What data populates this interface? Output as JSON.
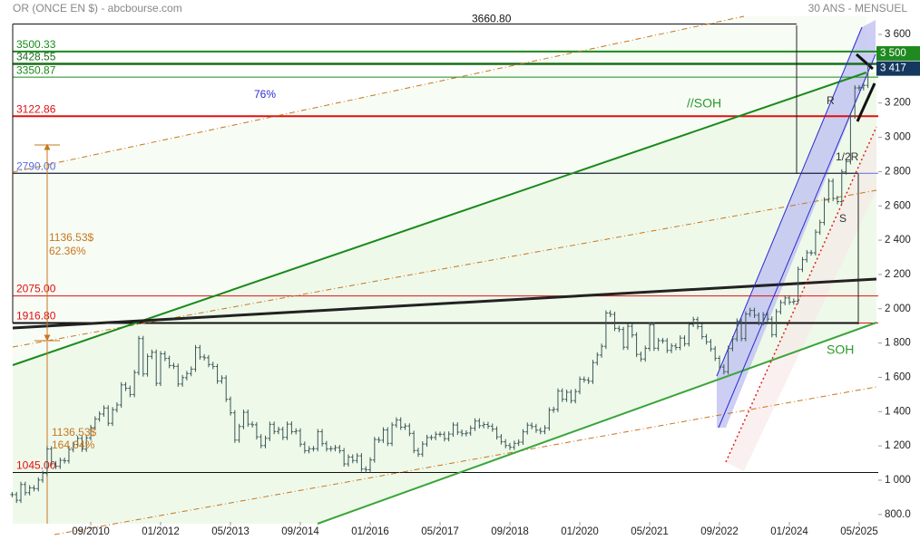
{
  "chart_data": {
    "type": "ohlc",
    "title": "OR (ONCE EN $) - abcbourse.com",
    "subtitle": "30 ANS - MENSUEL",
    "x": [
      "03/2009",
      "04/2009",
      "05/2009",
      "06/2009",
      "07/2009",
      "08/2009",
      "09/2009",
      "10/2009",
      "11/2009",
      "12/2009",
      "01/2010",
      "02/2010",
      "03/2010",
      "04/2010",
      "05/2010",
      "06/2010",
      "07/2010",
      "08/2010",
      "09/2010",
      "10/2010",
      "11/2010",
      "12/2010",
      "01/2011",
      "02/2011",
      "03/2011",
      "04/2011",
      "05/2011",
      "06/2011",
      "07/2011",
      "08/2011",
      "09/2011",
      "10/2011",
      "11/2011",
      "12/2011",
      "01/2012",
      "02/2012",
      "03/2012",
      "04/2012",
      "05/2012",
      "06/2012",
      "07/2012",
      "08/2012",
      "09/2012",
      "10/2012",
      "11/2012",
      "12/2012",
      "01/2013",
      "02/2013",
      "03/2013",
      "04/2013",
      "05/2013",
      "06/2013",
      "07/2013",
      "08/2013",
      "09/2013",
      "10/2013",
      "11/2013",
      "12/2013",
      "01/2014",
      "02/2014",
      "03/2014",
      "04/2014",
      "05/2014",
      "06/2014",
      "07/2014",
      "08/2014",
      "09/2014",
      "10/2014",
      "11/2014",
      "12/2014",
      "01/2015",
      "02/2015",
      "03/2015",
      "04/2015",
      "05/2015",
      "06/2015",
      "07/2015",
      "08/2015",
      "09/2015",
      "10/2015",
      "11/2015",
      "12/2015",
      "01/2016",
      "02/2016",
      "03/2016",
      "04/2016",
      "05/2016",
      "06/2016",
      "07/2016",
      "08/2016",
      "09/2016",
      "10/2016",
      "11/2016",
      "12/2016",
      "01/2017",
      "02/2017",
      "03/2017",
      "04/2017",
      "05/2017",
      "06/2017",
      "07/2017",
      "08/2017",
      "09/2017",
      "10/2017",
      "11/2017",
      "12/2017",
      "01/2018",
      "02/2018",
      "03/2018",
      "04/2018",
      "05/2018",
      "06/2018",
      "07/2018",
      "08/2018",
      "09/2018",
      "10/2018",
      "11/2018",
      "12/2018",
      "01/2019",
      "02/2019",
      "03/2019",
      "04/2019",
      "05/2019",
      "06/2019",
      "07/2019",
      "08/2019",
      "09/2019",
      "10/2019",
      "11/2019",
      "12/2019",
      "01/2020",
      "02/2020",
      "03/2020",
      "04/2020",
      "05/2020",
      "06/2020",
      "07/2020",
      "08/2020",
      "09/2020",
      "10/2020",
      "11/2020",
      "12/2020",
      "01/2021",
      "02/2021",
      "03/2021",
      "04/2021",
      "05/2021",
      "06/2021",
      "07/2021",
      "08/2021",
      "09/2021",
      "10/2021",
      "11/2021",
      "12/2021",
      "01/2022",
      "02/2022",
      "03/2022",
      "04/2022",
      "05/2022",
      "06/2022",
      "07/2022",
      "08/2022",
      "09/2022",
      "10/2022",
      "11/2022",
      "12/2022",
      "01/2023",
      "02/2023",
      "03/2023",
      "04/2023",
      "05/2023",
      "06/2023",
      "07/2023",
      "08/2023",
      "09/2023",
      "10/2023",
      "11/2023",
      "12/2023",
      "01/2024",
      "02/2024",
      "03/2024",
      "04/2024",
      "05/2024",
      "06/2024",
      "07/2024",
      "08/2024",
      "09/2024",
      "10/2024",
      "11/2024",
      "12/2024",
      "01/2025",
      "02/2025",
      "03/2025",
      "04/2025",
      "05/2025",
      "06/2025",
      "07/2025"
    ],
    "values": [
      916,
      883,
      975,
      927,
      955,
      951,
      1001,
      1040,
      1182,
      1096,
      1081,
      1116,
      1113,
      1179,
      1208,
      1244,
      1181,
      1247,
      1307,
      1357,
      1386,
      1421,
      1332,
      1411,
      1439,
      1556,
      1536,
      1500,
      1628,
      1826,
      1620,
      1722,
      1746,
      1565,
      1737,
      1710,
      1669,
      1664,
      1561,
      1598,
      1622,
      1648,
      1773,
      1719,
      1714,
      1675,
      1663,
      1578,
      1596,
      1472,
      1393,
      1234,
      1313,
      1396,
      1327,
      1323,
      1253,
      1202,
      1244,
      1326,
      1284,
      1296,
      1250,
      1327,
      1283,
      1287,
      1210,
      1172,
      1183,
      1184,
      1283,
      1213,
      1183,
      1184,
      1190,
      1172,
      1095,
      1135,
      1115,
      1142,
      1065,
      1061,
      1118,
      1237,
      1233,
      1293,
      1215,
      1322,
      1351,
      1309,
      1316,
      1273,
      1173,
      1152,
      1211,
      1249,
      1249,
      1268,
      1268,
      1242,
      1269,
      1322,
      1280,
      1271,
      1275,
      1303,
      1345,
      1318,
      1325,
      1315,
      1298,
      1253,
      1224,
      1202,
      1192,
      1215,
      1222,
      1282,
      1321,
      1313,
      1292,
      1284,
      1305,
      1409,
      1413,
      1520,
      1472,
      1513,
      1464,
      1517,
      1589,
      1585,
      1577,
      1686,
      1730,
      1781,
      1975,
      1967,
      1886,
      1879,
      1776,
      1898,
      1847,
      1734,
      1707,
      1769,
      1906,
      1770,
      1814,
      1813,
      1757,
      1783,
      1774,
      1829,
      1796,
      1909,
      1937,
      1896,
      1837,
      1807,
      1766,
      1711,
      1660,
      1633,
      1768,
      1824,
      1928,
      1826,
      1969,
      1990,
      1962,
      1919,
      1965,
      1940,
      1849,
      1983,
      2036,
      2063,
      2039,
      2044,
      2230,
      2286,
      2327,
      2326,
      2447,
      2503,
      2634,
      2744,
      2643,
      2625,
      2798,
      2858,
      3124,
      3288,
      3289,
      3303,
      3417
    ],
    "color": "#3b5757",
    "ylim": [
      800,
      3700
    ],
    "yticks": [
      {
        "value": 800,
        "label": "800.0"
      },
      {
        "value": 1000,
        "label": "1 000"
      },
      {
        "value": 1200,
        "label": "1 200"
      },
      {
        "value": 1400,
        "label": "1 400"
      },
      {
        "value": 1600,
        "label": "1 600"
      },
      {
        "value": 1800,
        "label": "1 800"
      },
      {
        "value": 2000,
        "label": "2 000"
      },
      {
        "value": 2200,
        "label": "2 200"
      },
      {
        "value": 2400,
        "label": "2 400"
      },
      {
        "value": 2600,
        "label": "2 600"
      },
      {
        "value": 2800,
        "label": "2 800"
      },
      {
        "value": 3000,
        "label": "3 000"
      },
      {
        "value": 3200,
        "label": "3 200"
      },
      {
        "value": 3400,
        "label": "3 400"
      },
      {
        "value": 3600,
        "label": "3 600"
      }
    ],
    "xticks": [
      {
        "value": "09/2010",
        "label": "09/2010"
      },
      {
        "value": "01/2012",
        "label": "01/2012"
      },
      {
        "value": "05/2013",
        "label": "05/2013"
      },
      {
        "value": "09/2014",
        "label": "09/2014"
      },
      {
        "value": "01/2016",
        "label": "01/2016"
      },
      {
        "value": "05/2017",
        "label": "05/2017"
      },
      {
        "value": "09/2018",
        "label": "09/2018"
      },
      {
        "value": "01/2020",
        "label": "01/2020"
      },
      {
        "value": "05/2021",
        "label": "05/2021"
      },
      {
        "value": "09/2022",
        "label": "09/2022"
      },
      {
        "value": "01/2024",
        "label": "01/2024"
      },
      {
        "value": "05/2025",
        "label": "05/2025"
      }
    ],
    "levels": [
      {
        "value": 3500.33,
        "label": "3500.33",
        "color": "#1a8a1a",
        "width": 2
      },
      {
        "value": 3428.55,
        "label": "3428.55",
        "color": "#1a6e1a",
        "width": 2.5
      },
      {
        "value": 3350.87,
        "label": "3350.87",
        "color": "#1a8a1a",
        "width": 1
      },
      {
        "value": 3122.86,
        "label": "3122.86",
        "color": "#e01010",
        "width": 2
      },
      {
        "value": 2790.0,
        "label": "2790.00",
        "color": "#5a6ee0",
        "width": 1
      },
      {
        "value": 2075.0,
        "label": "2075.00",
        "color": "#e01010",
        "width": 1
      },
      {
        "value": 1916.8,
        "label": "1916.80",
        "color": "#e01010",
        "width": 1
      },
      {
        "value": 1045.0,
        "label": "1045.00",
        "color": "#e01010",
        "width": 1
      }
    ],
    "top_level": {
      "value": 3660.8,
      "label": "3660.80"
    },
    "price_tags": [
      {
        "value": 3500,
        "label": "3 500",
        "color": "#1f8a1f"
      },
      {
        "value": 3417,
        "label": "3 417",
        "color": "#15385e"
      }
    ],
    "annotations": [
      "76%",
      "//SOH",
      "R",
      "1/2R",
      "S",
      "SOH",
      "1136.53$",
      "62.36%",
      "1136.53$",
      "164.04%"
    ]
  }
}
